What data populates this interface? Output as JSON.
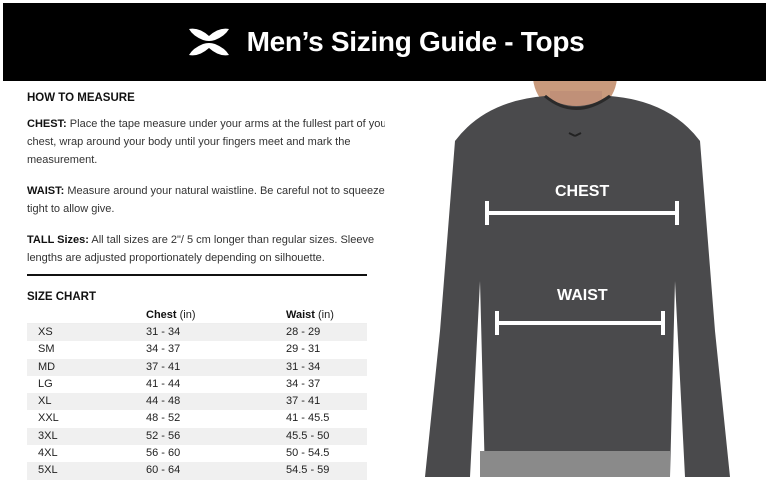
{
  "header": {
    "title": "Men’s Sizing Guide - Tops",
    "logo": "under-armour-logo"
  },
  "how_to_measure": {
    "heading": "HOW TO MEASURE",
    "chest_label": "CHEST:",
    "chest_text": "Place the tape measure under your arms at the fullest part of your chest, wrap around your body until your fingers meet and mark the measurement.",
    "waist_label": "WAIST:",
    "waist_text": "Measure around your natural waistline. Be careful not to squeeze too tight to allow give.",
    "tall_label": "TALL Sizes:",
    "tall_text": "All tall sizes are 2\"/ 5 cm longer than regular sizes. Sleeve lengths are adjusted proportionately depending on silhouette."
  },
  "size_chart": {
    "heading": "SIZE CHART",
    "columns": [
      {
        "name": "Chest",
        "unit": "(in)"
      },
      {
        "name": "Waist",
        "unit": "(in)"
      }
    ],
    "rows": [
      [
        "XS",
        "31 - 34",
        "28 - 29"
      ],
      [
        "SM",
        "34 - 37",
        "29 - 31"
      ],
      [
        "MD",
        "37 - 41",
        "31 - 34"
      ],
      [
        "LG",
        "41 - 44",
        "34 - 37"
      ],
      [
        "XL",
        "44 - 48",
        "37 - 41"
      ],
      [
        "XXL",
        "48 - 52",
        "41 - 45.5"
      ],
      [
        "3XL",
        "52 - 56",
        "45.5 - 50"
      ],
      [
        "4XL",
        "56 - 60",
        "50 - 54.5"
      ],
      [
        "5XL",
        "60 - 64",
        "54.5 - 59"
      ]
    ]
  },
  "photo": {
    "chest_label": "CHEST",
    "waist_label": "WAIST",
    "shirt_color": "#4a4a4c"
  }
}
